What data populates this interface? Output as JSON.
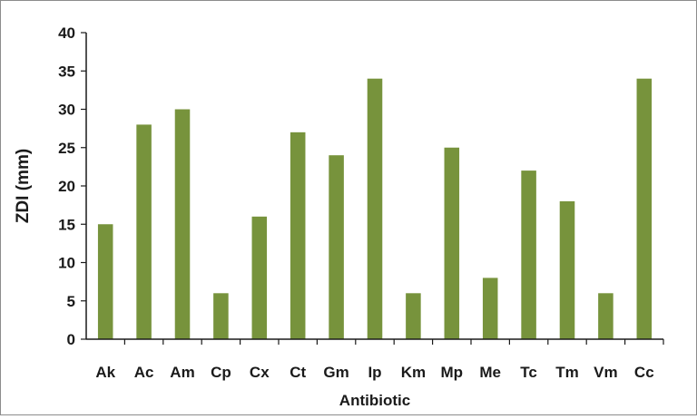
{
  "chart_data": {
    "type": "bar",
    "title": "",
    "xlabel": "Antibiotic",
    "ylabel": "ZDI (mm)",
    "ylim": [
      0,
      40
    ],
    "ytick_step": 5,
    "grid": false,
    "legend": "none",
    "bar_color": "#77933c",
    "categories": [
      "Ak",
      "Ac",
      "Am",
      "Cp",
      "Cx",
      "Ct",
      "Gm",
      "Ip",
      "Km",
      "Mp",
      "Me",
      "Tc",
      "Tm",
      "Vm",
      "Cc"
    ],
    "values": [
      15,
      28,
      30,
      6,
      16,
      27,
      24,
      34,
      6,
      25,
      8,
      22,
      18,
      6,
      34
    ]
  }
}
